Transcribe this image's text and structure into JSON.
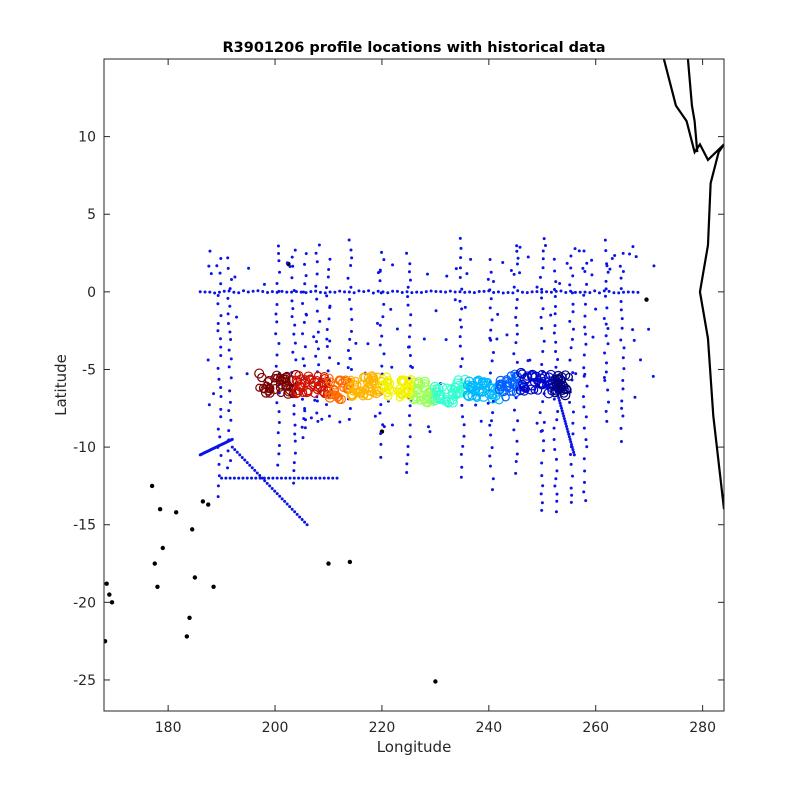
{
  "chart_data": {
    "type": "scatter",
    "title": "R3901206 profile locations with historical data",
    "xlabel": "Longitude",
    "ylabel": "Latitude",
    "xlim": [
      168,
      284
    ],
    "ylim": [
      -27,
      15
    ],
    "xticks": [
      180,
      200,
      220,
      240,
      260,
      280
    ],
    "yticks": [
      10,
      5,
      0,
      -5,
      -10,
      -15,
      -20,
      -25
    ],
    "grid": false,
    "colors": {
      "historical": "#0a14e6",
      "coastline": "#000000",
      "float_colormap": [
        "#7a0000",
        "#d01200",
        "#ff6a00",
        "#ffb400",
        "#f2f200",
        "#9aff5a",
        "#35ffd0",
        "#00b8ff",
        "#0060ff",
        "#0008c8",
        "#000080"
      ]
    },
    "series": [
      {
        "kind": "historical_points",
        "x_lines": [
          189.5,
          191.5,
          200.5,
          203.5,
          205.5,
          208,
          210,
          214,
          220,
          225,
          235,
          240.5,
          245,
          250,
          252.5,
          255.5,
          258,
          262,
          265
        ],
        "equator_track": {
          "y": 0,
          "x_range": [
            186,
            268
          ]
        },
        "diagonal_tracks": [
          {
            "from": [
              186,
              -10.5
            ],
            "to": [
              192,
              -9.5
            ]
          },
          {
            "from": [
              192,
              -10
            ],
            "to": [
              206,
              -15
            ]
          },
          {
            "from": [
              252,
              -5.5
            ],
            "to": [
              256,
              -10.5
            ]
          }
        ],
        "horizontal_tracks": [
          {
            "y": -12,
            "x_range": [
              190,
              212
            ]
          }
        ]
      },
      {
        "kind": "float_track",
        "x": [
          198,
          201,
          203,
          205,
          207,
          209,
          211,
          213,
          215,
          217,
          219,
          221,
          223,
          225,
          227,
          229,
          231,
          233,
          235,
          237,
          239,
          241,
          243,
          245,
          247,
          249,
          251,
          253,
          254
        ],
        "y": [
          -5.9,
          -5.9,
          -6.0,
          -5.9,
          -6.0,
          -6.1,
          -6.2,
          -6.3,
          -6.2,
          -6.1,
          -6.0,
          -6.1,
          -6.2,
          -6.3,
          -6.4,
          -6.6,
          -6.7,
          -6.6,
          -6.3,
          -6.2,
          -6.3,
          -6.4,
          -6.2,
          -5.9,
          -5.8,
          -5.8,
          -5.9,
          -6.0,
          -6.0
        ]
      }
    ],
    "islands": [
      [
        269.5,
        -0.5
      ],
      [
        202.5,
        1.8
      ],
      [
        177,
        -12.5
      ],
      [
        178.5,
        -14
      ],
      [
        179,
        -16.5
      ],
      [
        177.5,
        -17.5
      ],
      [
        181.5,
        -14.2
      ],
      [
        184.5,
        -15.3
      ],
      [
        185,
        -18.4
      ],
      [
        186.5,
        -13.5
      ],
      [
        187.5,
        -13.7
      ],
      [
        188.5,
        -19
      ],
      [
        184,
        -21
      ],
      [
        183.5,
        -22.2
      ],
      [
        168.5,
        -18.8
      ],
      [
        169,
        -19.5
      ],
      [
        169.5,
        -20
      ],
      [
        168.2,
        -22.5
      ],
      [
        178,
        -19
      ],
      [
        210,
        -17.5
      ],
      [
        214,
        -17.4
      ],
      [
        220,
        -9
      ],
      [
        230,
        -25.1
      ]
    ]
  }
}
